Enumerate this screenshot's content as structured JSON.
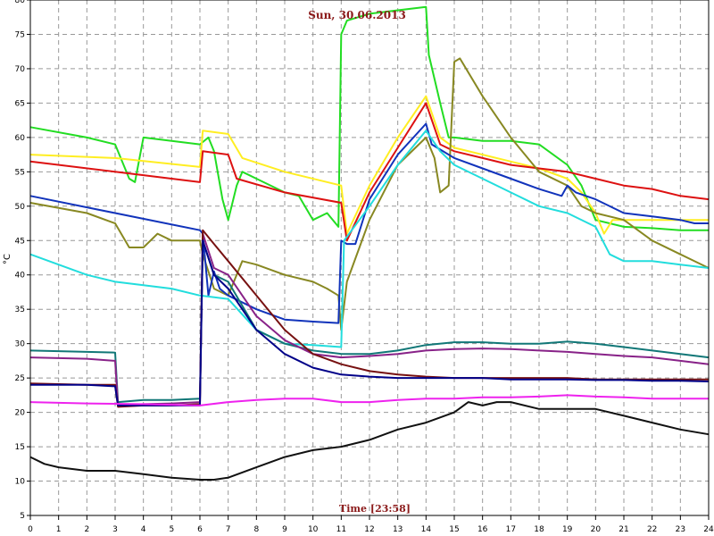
{
  "chart_data": {
    "type": "line",
    "title": "Sun, 30.06.2013",
    "xlabel": "Time [23:58]",
    "ylabel": "°C",
    "xlim": [
      0,
      24
    ],
    "ylim": [
      5,
      80
    ],
    "xticks": [
      0,
      1,
      2,
      3,
      4,
      5,
      6,
      7,
      8,
      9,
      10,
      11,
      12,
      13,
      14,
      15,
      16,
      17,
      18,
      19,
      20,
      21,
      22,
      23,
      24
    ],
    "yticks": [
      5,
      10,
      15,
      20,
      25,
      30,
      35,
      40,
      45,
      50,
      55,
      60,
      65,
      70,
      75,
      80
    ],
    "grid": true,
    "series": [
      {
        "color": "#22dd22",
        "x": [
          0,
          2,
          3,
          3.5,
          3.7,
          4,
          6,
          6.3,
          6.5,
          6.8,
          7,
          7.3,
          7.5,
          8,
          9,
          9.5,
          10,
          10.5,
          10.9,
          11,
          11.2,
          12,
          13,
          14,
          14.1,
          14.5,
          14.8,
          15,
          16,
          17,
          18,
          19,
          19.5,
          20,
          21,
          22,
          23,
          24
        ],
        "y": [
          61.5,
          60,
          59,
          54,
          53.5,
          60,
          59,
          60,
          58,
          51,
          48,
          53,
          55,
          54,
          52,
          51.5,
          48,
          49,
          47,
          75,
          77,
          78,
          78.5,
          79,
          72,
          65,
          60,
          60,
          59.5,
          59.5,
          59,
          56,
          53,
          48,
          47,
          46.8,
          46.5,
          46.5
        ]
      },
      {
        "color": "#ffee22",
        "x": [
          0,
          3,
          6,
          6.1,
          7,
          7.5,
          9,
          11,
          11.2,
          12,
          13,
          14,
          14.5,
          15,
          16,
          17,
          18,
          19,
          19.5,
          20,
          20.3,
          20.6,
          21,
          22,
          23,
          24
        ],
        "y": [
          57.5,
          57,
          55.7,
          61,
          60.5,
          57,
          55,
          53,
          46,
          53,
          60,
          66,
          60,
          58.5,
          57.5,
          56.5,
          55.5,
          54,
          52,
          49,
          46,
          48,
          48,
          48,
          48,
          48
        ]
      },
      {
        "color": "#dd1111",
        "x": [
          0,
          3,
          6,
          6.1,
          7,
          7.3,
          9,
          11,
          11.2,
          12,
          13,
          14,
          14.5,
          15,
          16,
          17,
          18,
          19,
          20,
          21,
          22,
          23,
          24
        ],
        "y": [
          56.5,
          55,
          53.5,
          58,
          57.5,
          54,
          52,
          50.5,
          45,
          52,
          58.5,
          65,
          59,
          58,
          57,
          56,
          55.5,
          55,
          54,
          53,
          52.5,
          51.5,
          51
        ]
      },
      {
        "color": "#888822",
        "x": [
          0,
          2,
          3,
          3.5,
          4,
          4.5,
          5,
          6,
          6.1,
          6.5,
          7,
          7.5,
          8,
          9,
          10,
          10.5,
          10.9,
          11,
          11.2,
          12,
          13,
          14,
          14.3,
          14.5,
          14.8,
          15,
          15.2,
          16,
          17,
          18,
          19,
          19.5,
          20,
          21,
          22,
          23,
          24
        ],
        "y": [
          50.5,
          49,
          47.5,
          44,
          44,
          46,
          45,
          45,
          43,
          38,
          37,
          42,
          41.5,
          40,
          39,
          38,
          37,
          32,
          39,
          48,
          56,
          60,
          57,
          52,
          53,
          71,
          71.5,
          66,
          60,
          55,
          53,
          50,
          49,
          48,
          45,
          43,
          41
        ]
      },
      {
        "color": "#1133bb",
        "x": [
          0,
          3,
          6,
          6.1,
          6.3,
          6.5,
          6.7,
          7,
          8,
          9,
          10,
          10.9,
          11,
          11.2,
          11.5,
          12,
          13,
          14,
          14.2,
          15,
          16,
          17,
          18,
          18.8,
          19,
          19.3,
          20,
          21,
          22,
          23,
          23.5,
          24
        ],
        "y": [
          51.5,
          49,
          46.5,
          46,
          37,
          40.5,
          38,
          37,
          35,
          33.5,
          33.2,
          33,
          45,
          44.5,
          44.5,
          51,
          57.5,
          62,
          59,
          57,
          55.5,
          54,
          52.5,
          51.5,
          53,
          52,
          51,
          49,
          48.5,
          48,
          47.5,
          47.5
        ]
      },
      {
        "color": "#22dddd",
        "x": [
          0,
          2,
          3,
          4,
          5,
          6,
          7,
          8,
          9,
          10,
          11,
          11.1,
          12,
          13,
          14,
          14.5,
          15,
          16,
          17,
          18,
          19,
          20,
          20.5,
          21,
          22,
          23,
          24
        ],
        "y": [
          43,
          40,
          39,
          38.5,
          38,
          37,
          36.5,
          32,
          30,
          29.8,
          29.5,
          45,
          50,
          56,
          61,
          58,
          56,
          54,
          52,
          50,
          49,
          47,
          43,
          42,
          42,
          41.5,
          41
        ]
      },
      {
        "color": "#117777",
        "x": [
          0,
          2,
          3,
          3.1,
          4,
          5,
          6,
          6.1,
          6.5,
          7,
          8,
          9,
          10,
          11,
          12,
          13,
          14,
          15,
          16,
          17,
          18,
          19,
          20,
          21,
          22,
          23,
          24
        ],
        "y": [
          29,
          28.8,
          28.7,
          21.5,
          21.8,
          21.8,
          22,
          45,
          40,
          39,
          32,
          30,
          29,
          28.5,
          28.5,
          29,
          29.8,
          30.2,
          30.2,
          30,
          30,
          30.3,
          30,
          29.5,
          29,
          28.5,
          28
        ]
      },
      {
        "color": "#882288",
        "x": [
          0,
          2,
          3,
          3.1,
          4,
          5,
          6,
          6.1,
          6.5,
          7,
          8,
          9,
          10,
          11,
          12,
          13,
          14,
          15,
          16,
          17,
          18,
          19,
          20,
          21,
          22,
          23,
          24
        ],
        "y": [
          28,
          27.8,
          27.5,
          21,
          21.2,
          21.3,
          21.5,
          46,
          41,
          40,
          34,
          30.5,
          28.5,
          28,
          28.2,
          28.5,
          29,
          29.2,
          29.3,
          29.2,
          29,
          28.8,
          28.5,
          28.2,
          28,
          27.5,
          27
        ]
      },
      {
        "color": "#771111",
        "x": [
          0,
          2,
          3,
          3.1,
          4,
          5,
          6,
          6.1,
          6.5,
          7,
          8,
          9,
          10,
          11,
          12,
          13,
          14,
          15,
          16,
          17,
          18,
          19,
          20,
          21,
          22,
          23,
          24
        ],
        "y": [
          24.2,
          24,
          24,
          20.8,
          21,
          21,
          21.2,
          46.5,
          44.5,
          42,
          37,
          32,
          28.5,
          27,
          26,
          25.5,
          25.2,
          25,
          25,
          25,
          25,
          25,
          24.8,
          24.8,
          24.8,
          24.8,
          24.8
        ]
      },
      {
        "color": "#000088",
        "x": [
          0,
          2,
          3,
          3.1,
          4,
          5,
          6,
          6.1,
          6.5,
          7,
          8,
          9,
          10,
          11,
          12,
          13,
          14,
          15,
          16,
          17,
          18,
          19,
          20,
          21,
          22,
          23,
          24
        ],
        "y": [
          24,
          24,
          23.8,
          21,
          21,
          21,
          21,
          45,
          40,
          38,
          32,
          28.5,
          26.5,
          25.5,
          25.2,
          25,
          25,
          25,
          25,
          24.8,
          24.8,
          24.8,
          24.7,
          24.7,
          24.6,
          24.6,
          24.5
        ]
      },
      {
        "color": "#ee22ee",
        "x": [
          0,
          2,
          4,
          6,
          7,
          8,
          9,
          10,
          11,
          12,
          13,
          14,
          15,
          16,
          17,
          18,
          19,
          20,
          21,
          22,
          23,
          24
        ],
        "y": [
          21.5,
          21.3,
          21.2,
          21,
          21.5,
          21.8,
          22,
          22,
          21.5,
          21.5,
          21.8,
          22,
          22,
          22.2,
          22.2,
          22.3,
          22.5,
          22.3,
          22.2,
          22,
          22,
          22
        ]
      },
      {
        "color": "#111111",
        "x": [
          0,
          0.5,
          1,
          2,
          3,
          4,
          5,
          6,
          6.5,
          7,
          8,
          9,
          10,
          11,
          12,
          13,
          14,
          15,
          15.5,
          16,
          16.5,
          17,
          18,
          19,
          20,
          21,
          22,
          23,
          24
        ],
        "y": [
          13.5,
          12.5,
          12,
          11.5,
          11.5,
          11,
          10.5,
          10.2,
          10.2,
          10.5,
          12,
          13.5,
          14.5,
          15,
          16,
          17.5,
          18.5,
          20,
          21.5,
          21,
          21.5,
          21.5,
          20.5,
          20.5,
          20.5,
          19.5,
          18.5,
          17.5,
          16.8
        ]
      }
    ]
  }
}
